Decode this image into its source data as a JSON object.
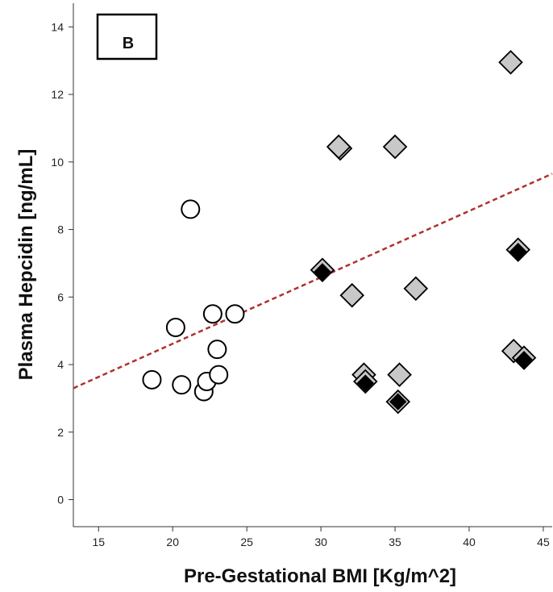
{
  "chart_data": {
    "type": "scatter",
    "panel_label": "B",
    "xlabel": "Pre-Gestational BMI [Kg/m^2]",
    "ylabel": "Plasma Hepcidin [ng/mL]",
    "xlim": [
      13.3,
      45.6
    ],
    "ylim": [
      -0.8,
      14.7
    ],
    "xticks": [
      15,
      20,
      25,
      30,
      35,
      40,
      45
    ],
    "yticks": [
      0,
      2,
      4,
      6,
      8,
      10,
      12,
      14
    ],
    "grid": false,
    "legend": "none",
    "colors": {
      "open_circle": "#ffffff",
      "gray_diamond": "#c8c8c8",
      "black_diamond": "#000000",
      "trend_line": "#b03030"
    },
    "series": [
      {
        "marker": "open-circle",
        "points": [
          {
            "x": 18.6,
            "y": 3.55
          },
          {
            "x": 20.2,
            "y": 5.1
          },
          {
            "x": 20.6,
            "y": 3.4
          },
          {
            "x": 21.2,
            "y": 8.6
          },
          {
            "x": 22.1,
            "y": 3.2
          },
          {
            "x": 22.3,
            "y": 3.5
          },
          {
            "x": 22.7,
            "y": 5.5
          },
          {
            "x": 23.0,
            "y": 4.45
          },
          {
            "x": 23.1,
            "y": 3.7
          },
          {
            "x": 24.2,
            "y": 5.5
          }
        ]
      },
      {
        "marker": "gray-diamond",
        "points": [
          {
            "x": 31.3,
            "y": 10.4
          },
          {
            "x": 31.2,
            "y": 10.45
          },
          {
            "x": 32.1,
            "y": 6.05
          },
          {
            "x": 32.9,
            "y": 3.7
          },
          {
            "x": 35.0,
            "y": 10.45
          },
          {
            "x": 35.3,
            "y": 3.7
          },
          {
            "x": 36.4,
            "y": 6.25
          },
          {
            "x": 42.8,
            "y": 12.95
          },
          {
            "x": 43.0,
            "y": 4.4
          },
          {
            "x": 30.1,
            "y": 6.8
          },
          {
            "x": 43.3,
            "y": 7.4
          },
          {
            "x": 33.0,
            "y": 3.5
          },
          {
            "x": 35.2,
            "y": 2.9
          },
          {
            "x": 43.7,
            "y": 4.2
          }
        ]
      },
      {
        "marker": "black-diamond",
        "points": [
          {
            "x": 30.1,
            "y": 6.75
          },
          {
            "x": 43.3,
            "y": 7.35
          },
          {
            "x": 33.0,
            "y": 3.45
          },
          {
            "x": 35.2,
            "y": 2.9
          },
          {
            "x": 43.7,
            "y": 4.15
          }
        ]
      }
    ],
    "trend_line": {
      "style": "dashed",
      "points": [
        {
          "x": 13.3,
          "y": 3.3
        },
        {
          "x": 45.6,
          "y": 9.65
        }
      ]
    }
  }
}
